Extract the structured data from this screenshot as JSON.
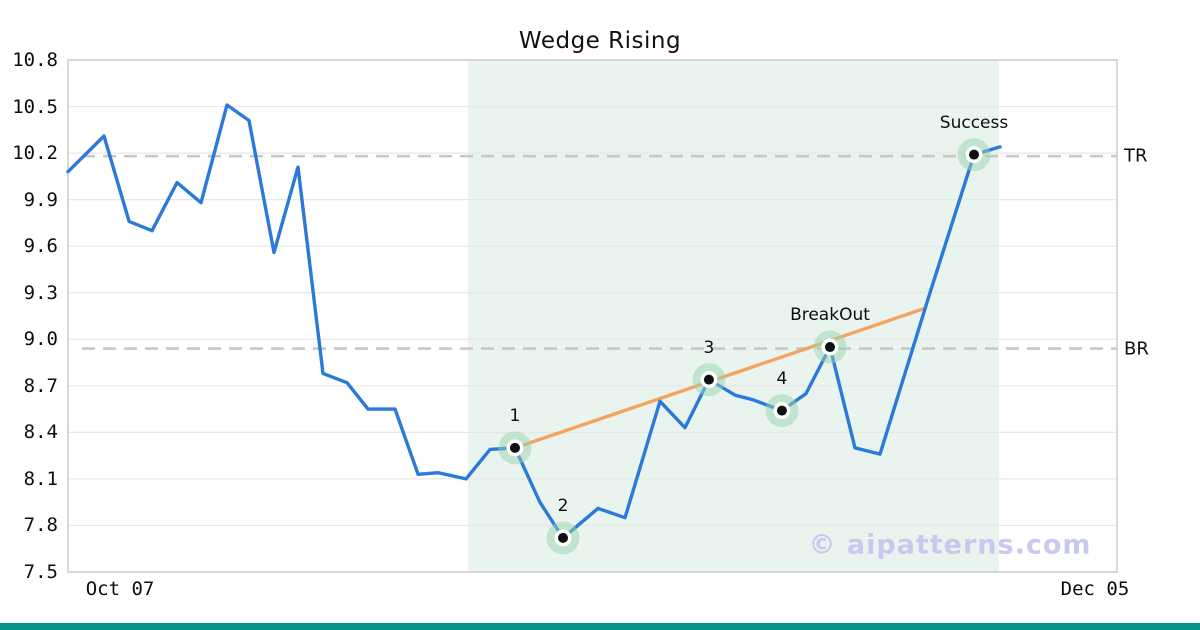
{
  "chart_data": {
    "type": "line",
    "title": "Wedge Rising",
    "watermark": "© aipatterns.com",
    "ylim": [
      7.5,
      10.8
    ],
    "yticks": [
      10.8,
      10.5,
      10.2,
      9.9,
      9.6,
      9.3,
      9.0,
      8.7,
      8.4,
      8.1,
      7.8,
      7.5
    ],
    "xticks": [
      {
        "label": "Oct 07",
        "fx": 0.0496
      },
      {
        "label": "Dec 05",
        "fx": 0.979
      }
    ],
    "grid": "horizontal",
    "colors": {
      "price_line": "#2b7ad9",
      "trendline": "#f4a460",
      "marker_halo": "#97d4ad",
      "pattern_region": "#add8c0",
      "level_dash": "#c8c8c8",
      "gridline": "#e7e7e7",
      "spine": "#cccccc",
      "watermark": "#c8c9ee",
      "bottom_bar": "#0d9488"
    },
    "pattern_region": {
      "fx0": 0.3813,
      "fx1": 0.8876
    },
    "levels": [
      {
        "label": "TR",
        "value": 10.18
      },
      {
        "label": "BR",
        "value": 8.94
      }
    ],
    "trendline": {
      "from": {
        "fx": 0.4261,
        "v": 8.3
      },
      "to": {
        "fx": 0.817,
        "v": 9.2
      }
    },
    "series": [
      {
        "name": "price",
        "points": [
          {
            "fx": 0.0,
            "v": 10.08
          },
          {
            "fx": 0.0343,
            "v": 10.31
          },
          {
            "fx": 0.0582,
            "v": 9.76
          },
          {
            "fx": 0.0801,
            "v": 9.7
          },
          {
            "fx": 0.1039,
            "v": 10.01
          },
          {
            "fx": 0.1268,
            "v": 9.88
          },
          {
            "fx": 0.1516,
            "v": 10.51
          },
          {
            "fx": 0.1725,
            "v": 10.41
          },
          {
            "fx": 0.1964,
            "v": 9.56
          },
          {
            "fx": 0.2193,
            "v": 10.11
          },
          {
            "fx": 0.2431,
            "v": 8.78
          },
          {
            "fx": 0.266,
            "v": 8.72
          },
          {
            "fx": 0.286,
            "v": 8.55
          },
          {
            "fx": 0.3117,
            "v": 8.55
          },
          {
            "fx": 0.3337,
            "v": 8.13
          },
          {
            "fx": 0.3527,
            "v": 8.14
          },
          {
            "fx": 0.3794,
            "v": 8.1
          },
          {
            "fx": 0.4023,
            "v": 8.29
          },
          {
            "fx": 0.4261,
            "v": 8.3
          },
          {
            "fx": 0.4499,
            "v": 7.95
          },
          {
            "fx": 0.4719,
            "v": 7.72
          },
          {
            "fx": 0.5052,
            "v": 7.91
          },
          {
            "fx": 0.531,
            "v": 7.85
          },
          {
            "fx": 0.5643,
            "v": 8.6
          },
          {
            "fx": 0.5882,
            "v": 8.43
          },
          {
            "fx": 0.611,
            "v": 8.74
          },
          {
            "fx": 0.6358,
            "v": 8.64
          },
          {
            "fx": 0.653,
            "v": 8.61
          },
          {
            "fx": 0.6806,
            "v": 8.54
          },
          {
            "fx": 0.7035,
            "v": 8.65
          },
          {
            "fx": 0.7264,
            "v": 8.95
          },
          {
            "fx": 0.7502,
            "v": 8.3
          },
          {
            "fx": 0.7741,
            "v": 8.26
          },
          {
            "fx": 0.8217,
            "v": 9.3
          },
          {
            "fx": 0.8637,
            "v": 10.19
          },
          {
            "fx": 0.8885,
            "v": 10.24
          }
        ]
      }
    ],
    "markers": [
      {
        "label": "1",
        "fx": 0.4261,
        "v": 8.3
      },
      {
        "label": "2",
        "fx": 0.4719,
        "v": 7.72
      },
      {
        "label": "3",
        "fx": 0.611,
        "v": 8.74
      },
      {
        "label": "4",
        "fx": 0.6806,
        "v": 8.54
      },
      {
        "label": "BreakOut",
        "fx": 0.7264,
        "v": 8.95
      },
      {
        "label": "Success",
        "fx": 0.8637,
        "v": 10.19
      }
    ]
  }
}
